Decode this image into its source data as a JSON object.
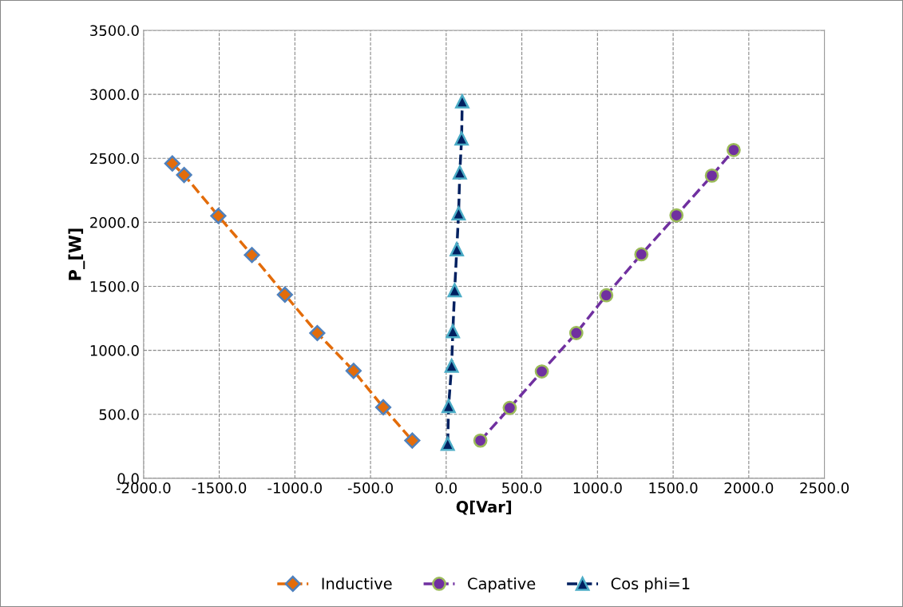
{
  "chart_data": {
    "type": "line",
    "xlabel": "Q[Var]",
    "ylabel": "P_[W]",
    "xlim": [
      -2000,
      2500
    ],
    "ylim": [
      0,
      3500
    ],
    "xticks": [
      {
        "value": -2000,
        "label": "-2000.0"
      },
      {
        "value": -1500,
        "label": "-1500.0"
      },
      {
        "value": -1000,
        "label": "-1000.0"
      },
      {
        "value": -500,
        "label": "-500.0"
      },
      {
        "value": 0,
        "label": "0.0"
      },
      {
        "value": 500,
        "label": "500.0"
      },
      {
        "value": 1000,
        "label": "1000.0"
      },
      {
        "value": 1500,
        "label": "1500.0"
      },
      {
        "value": 2000,
        "label": "2000.0"
      },
      {
        "value": 2500,
        "label": "2500.0"
      }
    ],
    "yticks": [
      {
        "value": 0,
        "label": "0.0"
      },
      {
        "value": 500,
        "label": "500.0"
      },
      {
        "value": 1000,
        "label": "1000.0"
      },
      {
        "value": 1500,
        "label": "1500.0"
      },
      {
        "value": 2000,
        "label": "2000.0"
      },
      {
        "value": 2500,
        "label": "2500.0"
      },
      {
        "value": 3000,
        "label": "3000.0"
      },
      {
        "value": 3500,
        "label": "3500.0"
      }
    ],
    "grid": true,
    "legend": "bottom",
    "line_style": "dashed",
    "series": [
      {
        "name": "Inductive",
        "color": "#e36c0a",
        "marker": "diamond",
        "x": [
          -1810,
          -1732,
          -1506,
          -1284,
          -1066,
          -852,
          -612,
          -416,
          -224
        ],
        "values": [
          2460,
          2370,
          2050,
          1745,
          1435,
          1135,
          840,
          555,
          295
        ]
      },
      {
        "name": "Capative",
        "color": "#7030a0",
        "marker": "circle",
        "x": [
          226,
          420,
          632,
          860,
          1058,
          1290,
          1522,
          1756,
          1900
        ],
        "values": [
          295,
          550,
          835,
          1135,
          1430,
          1750,
          2055,
          2365,
          2565
        ]
      },
      {
        "name": "Cos phi=1",
        "color": "#002060",
        "marker": "triangle",
        "x": [
          10,
          16,
          36,
          44,
          56,
          70,
          82,
          90,
          102,
          106
        ],
        "values": [
          270,
          565,
          880,
          1150,
          1470,
          1790,
          2070,
          2390,
          2655,
          2945
        ]
      }
    ]
  }
}
